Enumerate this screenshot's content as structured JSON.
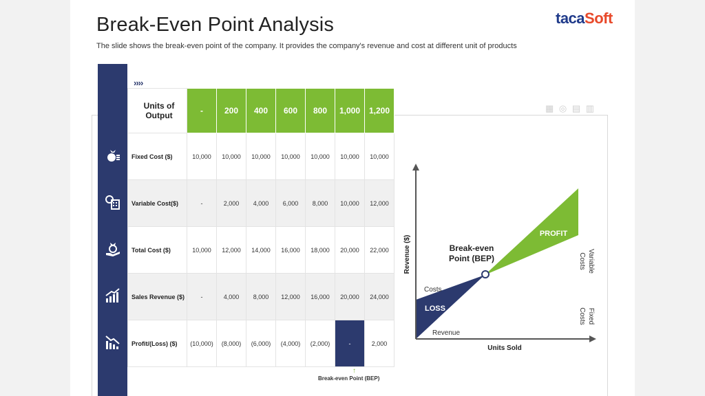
{
  "header": {
    "title": "Break-Even Point Analysis",
    "subtitle": "The slide shows the break-even  point of the company. It provides  the company's revenue  and cost at different unit of products",
    "logo_main": "taca",
    "logo_accent": "Soft"
  },
  "decor": {
    "chevrons": "››››",
    "tiny_icons": "▦ ◎ ▤ ▥"
  },
  "table": {
    "header_label": "Units of Output",
    "columns": [
      "-",
      "200",
      "400",
      "600",
      "800",
      "1,000",
      "1,200"
    ],
    "rows": [
      {
        "label": "Fixed Cost ($)",
        "icon": "money-bag-icon",
        "values": [
          "10,000",
          "10,000",
          "10,000",
          "10,000",
          "10,000",
          "10,000",
          "10,000"
        ]
      },
      {
        "label": "Variable Cost($)",
        "icon": "calculator-icon",
        "values": [
          "-",
          "2,000",
          "4,000",
          "6,000",
          "8,000",
          "10,000",
          "12,000"
        ]
      },
      {
        "label": "Total Cost ($)",
        "icon": "hand-money-icon",
        "values": [
          "10,000",
          "12,000",
          "14,000",
          "16,000",
          "18,000",
          "20,000",
          "22,000"
        ]
      },
      {
        "label": "Sales Revenue ($)",
        "icon": "growth-chart-icon",
        "values": [
          "-",
          "4,000",
          "8,000",
          "12,000",
          "16,000",
          "20,000",
          "24,000"
        ]
      },
      {
        "label": "Profit/(Loss) ($)",
        "icon": "decline-chart-icon",
        "values": [
          "(10,000)",
          "(8,000)",
          "(6,000)",
          "(4,000)",
          "(2,000)",
          "-",
          "2,000"
        ]
      }
    ],
    "bep_marker": "↑",
    "bep_label": "Break-even Point (BEP)"
  },
  "chart": {
    "y_axis": "Revenue ($)",
    "x_axis": "Units Sold",
    "bep_label_1": "Break-even",
    "bep_label_2": "Point (BEP)",
    "profit": "PROFIT",
    "loss": "LOSS",
    "costs": "Costs",
    "revenue": "Revenue",
    "variable_1": "Variable",
    "variable_2": "Costs",
    "fixed_1": "Fixed",
    "fixed_2": "Costs",
    "colors": {
      "navy": "#2c3a6e",
      "green": "#7dbb34"
    }
  }
}
